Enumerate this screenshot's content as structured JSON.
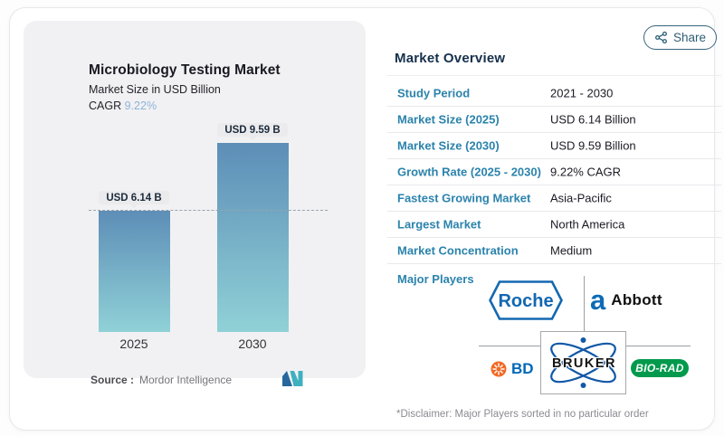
{
  "share_button": {
    "label": "Share"
  },
  "chart_panel": {
    "title": "Microbiology Testing Market",
    "subtitle": "Market Size in USD Billion",
    "cagr_label": "CAGR",
    "cagr_value": "9.22%",
    "source_label": "Source :",
    "source_value": "Mordor Intelligence"
  },
  "chart_data": {
    "type": "bar",
    "categories": [
      "2025",
      "2030"
    ],
    "values": [
      6.14,
      9.59
    ],
    "bar_value_labels": [
      "USD 6.14 B",
      "USD 9.59 B"
    ],
    "title": "Microbiology Testing Market",
    "ylabel": "Market Size in USD Billion",
    "ylim": [
      0,
      9.59
    ],
    "reference_line": {
      "value": 6.14,
      "style": "dashed"
    },
    "bar_gradient": [
      "#5d8eb7",
      "#90d1d7"
    ],
    "grid": "off",
    "legend": "none"
  },
  "overview": {
    "heading": "Market Overview",
    "rows": [
      {
        "label": "Study Period",
        "value": "2021 - 2030"
      },
      {
        "label": "Market Size (2025)",
        "value": "USD 6.14 Billion"
      },
      {
        "label": "Market Size (2030)",
        "value": "USD 9.59 Billion"
      },
      {
        "label": "Growth Rate (2025 - 2030)",
        "value": "9.22% CAGR"
      },
      {
        "label": "Fastest Growing Market",
        "value": "Asia-Pacific"
      },
      {
        "label": "Largest Market",
        "value": "North America"
      },
      {
        "label": "Market Concentration",
        "value": "Medium"
      }
    ],
    "major_players_label": "Major Players",
    "players": [
      "Roche",
      "Abbott",
      "BD",
      "Bruker",
      "Bio-Rad"
    ],
    "disclaimer": "*Disclaimer: Major Players sorted in no particular order"
  },
  "logos": {
    "roche_text": "Roche",
    "abbott_text": "Abbott",
    "bd_text": "BD",
    "bruker_text": "BRUKER",
    "biorad_text": "BIO-RAD"
  },
  "colors": {
    "row_label_blue": "#2b83ac",
    "heading_navy": "#16304b",
    "cagr_accent": "#8fb3d9",
    "bar_top": "#5d8eb7",
    "bar_bottom": "#90d1d7",
    "roche_blue": "#1368b1",
    "abbott_blue": "#0e6bb5",
    "bd_orange": "#f26924",
    "bd_blue": "#0067b8",
    "bruker_blue": "#1258a7",
    "biorad_green": "#019a4c",
    "share_teal": "#2d5f75"
  }
}
